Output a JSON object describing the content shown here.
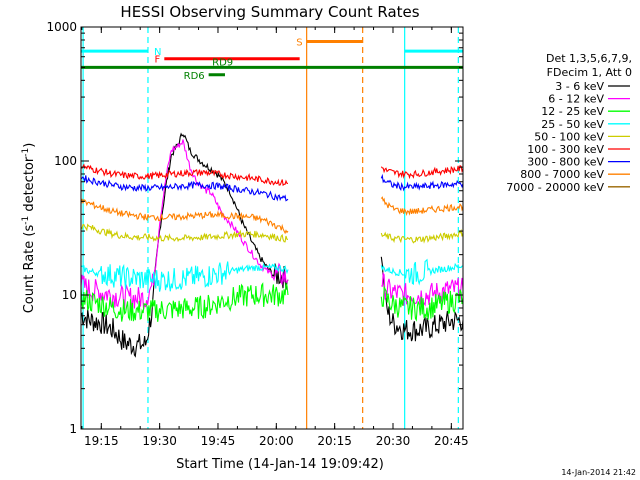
{
  "chart_data": {
    "type": "line",
    "title": "HESSI Observing Summary Count Rates",
    "xlabel": "Start Time (14-Jan-14 19:09:42)",
    "ylabel_main": "Count Rate (s",
    "ylabel_sup1": "-1",
    "ylabel_mid": " detector",
    "ylabel_sup2": "-1",
    "ylabel_end": ")",
    "yscale": "log",
    "ylim": [
      1,
      1000
    ],
    "xlim_minutes": [
      19.163,
      20.8
    ],
    "x_ticks": [
      "19:15",
      "19:30",
      "19:45",
      "20:00",
      "20:15",
      "20:30",
      "20:45"
    ],
    "x_tick_values_hours": [
      19.25,
      19.5,
      19.75,
      20.0,
      20.25,
      20.5,
      20.75
    ],
    "y_ticks": [
      "1",
      "10",
      "100",
      "1000"
    ],
    "y_tick_values": [
      1,
      10,
      100,
      1000
    ],
    "timestamp": "14-Jan-2014 21:42",
    "legend": {
      "header1": "Det 1,3,5,6,7,9,",
      "header2": "FDecim 1, Att 0",
      "entries": [
        {
          "label": "3 - 6 keV",
          "color": "#000000"
        },
        {
          "label": "6 - 12 keV",
          "color": "#ff00ff"
        },
        {
          "label": "12 - 25 keV",
          "color": "#00ff00"
        },
        {
          "label": "25 - 50 keV",
          "color": "#00ffff"
        },
        {
          "label": "50 - 100 keV",
          "color": "#cccc00"
        },
        {
          "label": "100 - 300 keV",
          "color": "#ff0000"
        },
        {
          "label": "300 - 800 keV",
          "color": "#0000ff"
        },
        {
          "label": "800 - 7000 keV",
          "color": "#ff8000"
        },
        {
          "label": "7000 - 20000 keV",
          "color": "#996600"
        }
      ]
    },
    "flags": [
      {
        "label": "N",
        "color": "#00ffff",
        "segments": [
          [
            19.163,
            19.45
          ],
          [
            20.55,
            20.8
          ]
        ],
        "value": 660
      },
      {
        "label": "F",
        "color": "#ff0000",
        "segments": [
          [
            19.52,
            20.1
          ]
        ],
        "value": 580
      },
      {
        "label": "S",
        "color": "#ff8000",
        "segments": [
          [
            20.13,
            20.37
          ]
        ],
        "value": 780
      },
      {
        "label": "RD9",
        "color": "#008000",
        "segments": [
          [
            19.163,
            20.8
          ]
        ],
        "value": 500
      },
      {
        "label": "RD6",
        "color": "#008000",
        "segments": [
          [
            19.71,
            19.78
          ]
        ],
        "value": 440
      }
    ],
    "vlines": [
      {
        "x": 19.172,
        "color": "#00ffff",
        "style": "solid"
      },
      {
        "x": 19.45,
        "color": "#00ffff",
        "style": "dashed"
      },
      {
        "x": 20.13,
        "color": "#ff8000",
        "style": "solid"
      },
      {
        "x": 20.37,
        "color": "#ff8000",
        "style": "dashed"
      },
      {
        "x": 20.55,
        "color": "#00ffff",
        "style": "solid"
      },
      {
        "x": 20.78,
        "color": "#00ffff",
        "style": "dashed"
      }
    ],
    "series": [
      {
        "name": "3 - 6 keV",
        "color": "#000000",
        "segments": [
          {
            "x": [
              19.163,
              19.2,
              19.25,
              19.3,
              19.35,
              19.4,
              19.44,
              19.47,
              19.5,
              19.53,
              19.55,
              19.58,
              19.6,
              19.63,
              19.66,
              19.7,
              19.73,
              19.76,
              19.8,
              19.83,
              19.86,
              19.9,
              19.93,
              19.96,
              19.99,
              20.02,
              20.05
            ],
            "y": [
              7.2,
              6.5,
              6.2,
              5.5,
              4.4,
              4.2,
              4.3,
              8,
              30,
              70,
              110,
              135,
              165,
              120,
              105,
              92,
              85,
              76,
              60,
              45,
              33,
              24,
              19,
              16,
              14,
              14,
              13
            ]
          },
          {
            "x": [
              20.45,
              20.47,
              20.5,
              20.55,
              20.6,
              20.65,
              20.7,
              20.75,
              20.8
            ],
            "y": [
              20,
              8,
              6.2,
              5.5,
              5.5,
              5.6,
              6,
              6.4,
              6.5
            ]
          }
        ]
      },
      {
        "name": "6 - 12 keV",
        "color": "#ff00ff",
        "segments": [
          {
            "x": [
              19.163,
              19.2,
              19.25,
              19.3,
              19.35,
              19.4,
              19.44,
              19.47,
              19.5,
              19.53,
              19.55,
              19.58,
              19.6,
              19.63,
              19.66,
              19.7,
              19.72,
              19.74,
              19.77,
              19.8,
              19.83,
              19.86,
              19.9,
              19.93,
              19.96,
              19.99,
              20.02,
              20.05
            ],
            "y": [
              12,
              11,
              10.5,
              10,
              9.5,
              9.5,
              9.5,
              12,
              35,
              80,
              120,
              130,
              140,
              90,
              70,
              60,
              58,
              50,
              40,
              35,
              30,
              25,
              20,
              17,
              15,
              14,
              14,
              13
            ]
          },
          {
            "x": [
              20.45,
              20.47,
              20.5,
              20.55,
              20.6,
              20.65,
              20.7,
              20.75,
              20.8
            ],
            "y": [
              13,
              11,
              10.5,
              10,
              10,
              10,
              10.5,
              11,
              11
            ]
          }
        ]
      },
      {
        "name": "12 - 25 keV",
        "color": "#00ff00",
        "segments": [
          {
            "x": [
              19.163,
              19.2,
              19.25,
              19.3,
              19.35,
              19.4,
              19.45,
              19.5,
              19.55,
              19.6,
              19.65,
              19.7,
              19.75,
              19.78,
              19.82,
              19.86,
              19.9,
              19.95,
              20.0,
              20.05
            ],
            "y": [
              9.5,
              9,
              8.6,
              8,
              7.7,
              7.6,
              7.6,
              7.7,
              7.8,
              7.9,
              8,
              8.2,
              8.8,
              9.2,
              9.5,
              9.8,
              10,
              10,
              10,
              10
            ]
          },
          {
            "x": [
              20.45,
              20.5,
              20.55,
              20.6,
              20.65,
              20.7,
              20.75,
              20.8
            ],
            "y": [
              10,
              8.5,
              8,
              8,
              8,
              8.5,
              9,
              9.5
            ]
          }
        ]
      },
      {
        "name": "25 - 50 keV",
        "color": "#00ffff",
        "segments": [
          {
            "x": [
              19.163,
              19.2,
              19.25,
              19.3,
              19.35,
              19.4,
              19.45,
              19.5,
              19.55,
              19.6,
              19.65,
              19.7,
              19.75,
              19.8,
              19.85,
              19.9,
              19.95,
              20.0,
              20.05
            ],
            "y": [
              16,
              15,
              14.5,
              14,
              13.5,
              13.3,
              13,
              13,
              13,
              13.2,
              13.5,
              13.8,
              14.5,
              15,
              15.5,
              16,
              16,
              16,
              15.5
            ]
          },
          {
            "x": [
              20.45,
              20.5,
              20.55,
              20.6,
              20.65,
              20.7,
              20.75,
              20.8
            ],
            "y": [
              16,
              15,
              14.5,
              14.5,
              15,
              15.5,
              16,
              16.5
            ]
          }
        ]
      },
      {
        "name": "50 - 100 keV",
        "color": "#cccc00",
        "segments": [
          {
            "x": [
              19.163,
              19.2,
              19.25,
              19.3,
              19.35,
              19.4,
              19.45,
              19.5,
              19.55,
              19.6,
              19.65,
              19.7,
              19.75,
              19.8,
              19.85,
              19.9,
              19.95,
              20.0,
              20.05
            ],
            "y": [
              33,
              32,
              30,
              28.5,
              27.5,
              27,
              27,
              26.5,
              26.5,
              26.5,
              26.8,
              27,
              27.5,
              28,
              28.5,
              28.5,
              28,
              27,
              26
            ]
          },
          {
            "x": [
              20.45,
              20.5,
              20.55,
              20.6,
              20.65,
              20.7,
              20.75,
              20.8
            ],
            "y": [
              28,
              26.5,
              26,
              26,
              26.5,
              27,
              28,
              29
            ]
          }
        ]
      },
      {
        "name": "100 - 300 keV",
        "color": "#ff0000",
        "segments": [
          {
            "x": [
              19.163,
              19.2,
              19.25,
              19.3,
              19.35,
              19.4,
              19.45,
              19.5,
              19.55,
              19.6,
              19.65,
              19.7,
              19.75,
              19.8,
              19.85,
              19.9,
              19.95,
              20.0,
              20.05
            ],
            "y": [
              92,
              88,
              84,
              80,
              78,
              77,
              77,
              78,
              80,
              81,
              82,
              82,
              80,
              78,
              76,
              74,
              72,
              70,
              68
            ]
          },
          {
            "x": [
              20.45,
              20.47,
              20.5,
              20.55,
              20.6,
              20.65,
              20.7,
              20.75,
              20.8
            ],
            "y": [
              90,
              85,
              82,
              80,
              80,
              82,
              84,
              86,
              88
            ]
          }
        ]
      },
      {
        "name": "300 - 800 keV",
        "color": "#0000ff",
        "segments": [
          {
            "x": [
              19.163,
              19.2,
              19.25,
              19.3,
              19.35,
              19.4,
              19.45,
              19.5,
              19.55,
              19.6,
              19.65,
              19.7,
              19.75,
              19.8,
              19.85,
              19.9,
              19.95,
              20.0,
              20.05
            ],
            "y": [
              76,
              72,
              69,
              66,
              64,
              63,
              63,
              63,
              64,
              65,
              66,
              66,
              65,
              63,
              61,
              59,
              57,
              54,
              52
            ]
          },
          {
            "x": [
              20.45,
              20.47,
              20.5,
              20.55,
              20.6,
              20.65,
              20.7,
              20.75,
              20.8
            ],
            "y": [
              75,
              70,
              66,
              64,
              64,
              65,
              66,
              67,
              68
            ]
          }
        ]
      },
      {
        "name": "800 - 7000 keV",
        "color": "#ff8000",
        "segments": [
          {
            "x": [
              19.163,
              19.2,
              19.25,
              19.3,
              19.35,
              19.4,
              19.45,
              19.5,
              19.55,
              19.6,
              19.65,
              19.7,
              19.75,
              19.8,
              19.85,
              19.9,
              19.95,
              20.0,
              20.05
            ],
            "y": [
              50,
              48,
              45,
              42,
              40,
              39,
              38,
              38,
              38,
              38.5,
              39,
              39.5,
              39.5,
              39,
              38.5,
              38,
              36,
              33,
              30
            ]
          },
          {
            "x": [
              20.45,
              20.47,
              20.5,
              20.55,
              20.6,
              20.65,
              20.7,
              20.75,
              20.8
            ],
            "y": [
              52,
              48,
              44,
              42,
              42,
              43,
              44,
              45,
              46
            ]
          }
        ]
      }
    ]
  }
}
